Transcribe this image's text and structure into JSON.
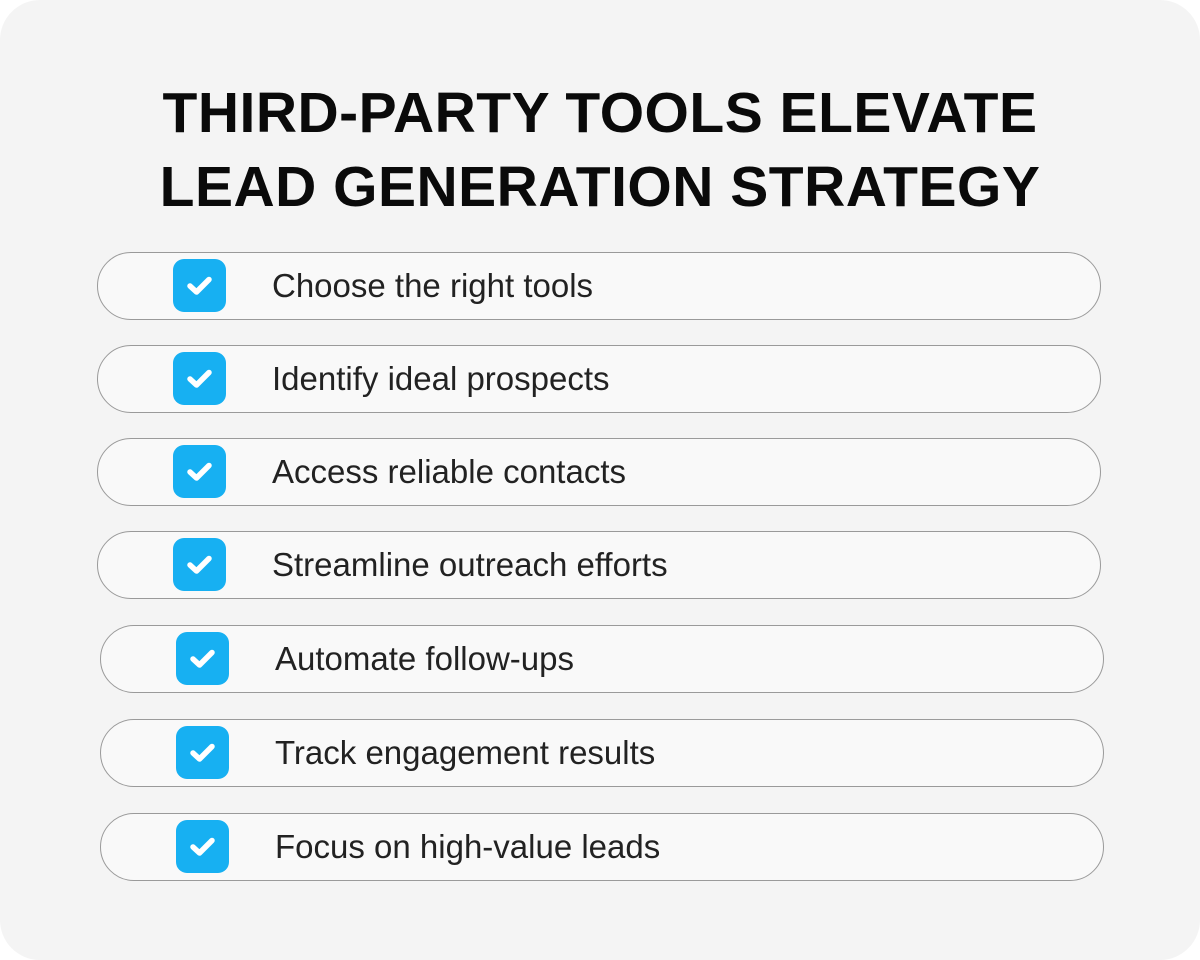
{
  "title_lines": [
    "THIRD-PARTY TOOLS ELEVATE",
    "LEAD GENERATION STRATEGY"
  ],
  "items": [
    {
      "label": "Choose the right tools",
      "checked": true
    },
    {
      "label": "Identify ideal prospects",
      "checked": true
    },
    {
      "label": "Access reliable contacts",
      "checked": true
    },
    {
      "label": "Streamline outreach efforts",
      "checked": true
    },
    {
      "label": "Automate follow-ups",
      "checked": true
    },
    {
      "label": "Track engagement results",
      "checked": true
    },
    {
      "label": "Focus on high-value leads",
      "checked": true
    }
  ],
  "colors": {
    "accent": "#17b0f2",
    "background": "#f4f4f4",
    "text": "#222222"
  },
  "icon": "check-icon"
}
